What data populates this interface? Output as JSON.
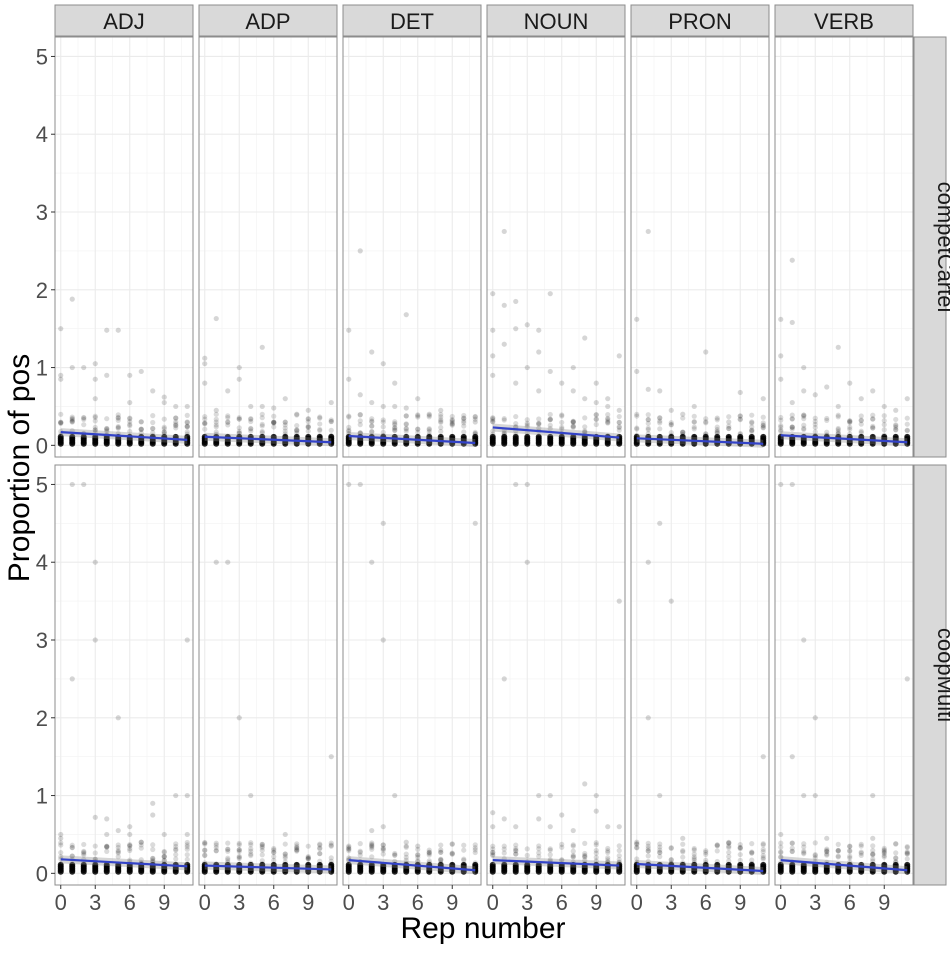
{
  "chart_data": {
    "type": "scatter",
    "title": "",
    "xlabel": "Rep number",
    "ylabel": "Proportion of pos",
    "xlim": [
      -0.5,
      11.5
    ],
    "ylim": [
      -0.15,
      5.25
    ],
    "x_ticks": [
      "0",
      "3",
      "6",
      "9"
    ],
    "y_ticks": [
      "0",
      "1",
      "2",
      "3",
      "4",
      "5"
    ],
    "grid": true,
    "legend": "none",
    "facet_columns": [
      "ADJ",
      "ADP",
      "DET",
      "NOUN",
      "PRON",
      "VERB"
    ],
    "facet_rows": [
      "competCartel",
      "coopMulti"
    ],
    "colors": {
      "points": "#000000",
      "fit_line": "#3343c8",
      "strip_fill": "#d9d9d9",
      "grid": "#ebebeb",
      "panel_border": "#8c8c8c"
    },
    "fit_lines": [
      {
        "row": "competCartel",
        "col": "ADJ",
        "y0": 0.17,
        "y11": 0.07
      },
      {
        "row": "competCartel",
        "col": "ADP",
        "y0": 0.11,
        "y11": 0.04
      },
      {
        "row": "competCartel",
        "col": "DET",
        "y0": 0.12,
        "y11": 0.03
      },
      {
        "row": "competCartel",
        "col": "NOUN",
        "y0": 0.23,
        "y11": 0.1
      },
      {
        "row": "competCartel",
        "col": "PRON",
        "y0": 0.09,
        "y11": 0.02
      },
      {
        "row": "competCartel",
        "col": "VERB",
        "y0": 0.13,
        "y11": 0.04
      },
      {
        "row": "coopMulti",
        "col": "ADJ",
        "y0": 0.18,
        "y11": 0.09
      },
      {
        "row": "coopMulti",
        "col": "ADP",
        "y0": 0.1,
        "y11": 0.05
      },
      {
        "row": "coopMulti",
        "col": "DET",
        "y0": 0.17,
        "y11": 0.04
      },
      {
        "row": "coopMulti",
        "col": "NOUN",
        "y0": 0.17,
        "y11": 0.1
      },
      {
        "row": "coopMulti",
        "col": "PRON",
        "y0": 0.12,
        "y11": 0.03
      },
      {
        "row": "coopMulti",
        "col": "VERB",
        "y0": 0.17,
        "y11": 0.04
      }
    ],
    "outliers": [
      {
        "row": "competCartel",
        "col": "ADJ",
        "points": [
          [
            0,
            1.5
          ],
          [
            0,
            0.9
          ],
          [
            0,
            0.85
          ],
          [
            1,
            1.88
          ],
          [
            1,
            1.0
          ],
          [
            1,
            0.3
          ],
          [
            2,
            1.0
          ],
          [
            3,
            1.05
          ],
          [
            3,
            0.85
          ],
          [
            3,
            0.6
          ],
          [
            4,
            1.48
          ],
          [
            4,
            0.9
          ],
          [
            5,
            1.48
          ],
          [
            5,
            0.35
          ],
          [
            6,
            0.9
          ],
          [
            6,
            0.55
          ],
          [
            7,
            0.95
          ],
          [
            8,
            0.7
          ],
          [
            9,
            0.62
          ],
          [
            9,
            0.55
          ],
          [
            10,
            0.5
          ],
          [
            10,
            0.35
          ],
          [
            11,
            0.5
          ],
          [
            11,
            0.3
          ]
        ]
      },
      {
        "row": "competCartel",
        "col": "ADP",
        "points": [
          [
            0,
            1.12
          ],
          [
            0,
            1.05
          ],
          [
            0,
            0.8
          ],
          [
            1,
            1.63
          ],
          [
            1,
            0.45
          ],
          [
            2,
            0.7
          ],
          [
            3,
            1.0
          ],
          [
            3,
            0.85
          ],
          [
            4,
            0.5
          ],
          [
            5,
            1.26
          ],
          [
            5,
            0.5
          ],
          [
            6,
            0.48
          ],
          [
            7,
            0.6
          ],
          [
            8,
            0.4
          ],
          [
            9,
            0.45
          ],
          [
            10,
            0.35
          ],
          [
            11,
            0.55
          ]
        ]
      },
      {
        "row": "competCartel",
        "col": "DET",
        "points": [
          [
            0,
            1.48
          ],
          [
            0,
            0.85
          ],
          [
            1,
            2.5
          ],
          [
            1,
            0.65
          ],
          [
            2,
            1.2
          ],
          [
            2,
            0.55
          ],
          [
            3,
            1.05
          ],
          [
            3,
            0.5
          ],
          [
            4,
            0.8
          ],
          [
            4,
            0.5
          ],
          [
            5,
            1.68
          ],
          [
            5,
            0.48
          ],
          [
            6,
            0.6
          ],
          [
            7,
            0.4
          ],
          [
            8,
            0.45
          ],
          [
            9,
            0.3
          ],
          [
            10,
            0.35
          ],
          [
            11,
            0.3
          ]
        ]
      },
      {
        "row": "competCartel",
        "col": "NOUN",
        "points": [
          [
            0,
            1.95
          ],
          [
            0,
            1.48
          ],
          [
            0,
            1.15
          ],
          [
            0,
            0.9
          ],
          [
            1,
            2.75
          ],
          [
            1,
            1.8
          ],
          [
            1,
            1.3
          ],
          [
            2,
            1.85
          ],
          [
            2,
            1.5
          ],
          [
            2,
            0.8
          ],
          [
            3,
            1.55
          ],
          [
            3,
            1.0
          ],
          [
            4,
            1.48
          ],
          [
            4,
            1.2
          ],
          [
            4,
            0.7
          ],
          [
            5,
            1.95
          ],
          [
            5,
            0.95
          ],
          [
            6,
            0.8
          ],
          [
            7,
            1.0
          ],
          [
            7,
            0.7
          ],
          [
            8,
            1.38
          ],
          [
            8,
            0.6
          ],
          [
            9,
            0.8
          ],
          [
            9,
            0.55
          ],
          [
            10,
            0.6
          ],
          [
            10,
            0.5
          ],
          [
            11,
            1.15
          ],
          [
            11,
            0.45
          ]
        ]
      },
      {
        "row": "competCartel",
        "col": "PRON",
        "points": [
          [
            0,
            1.62
          ],
          [
            0,
            0.95
          ],
          [
            1,
            2.75
          ],
          [
            1,
            0.72
          ],
          [
            2,
            0.7
          ],
          [
            3,
            0.45
          ],
          [
            4,
            0.4
          ],
          [
            5,
            0.5
          ],
          [
            6,
            1.2
          ],
          [
            7,
            0.35
          ],
          [
            8,
            0.3
          ],
          [
            9,
            0.68
          ],
          [
            10,
            0.3
          ],
          [
            11,
            0.6
          ]
        ]
      },
      {
        "row": "competCartel",
        "col": "VERB",
        "points": [
          [
            0,
            1.62
          ],
          [
            0,
            1.15
          ],
          [
            0,
            0.85
          ],
          [
            1,
            2.38
          ],
          [
            1,
            1.58
          ],
          [
            1,
            0.55
          ],
          [
            2,
            1.0
          ],
          [
            2,
            0.7
          ],
          [
            3,
            0.65
          ],
          [
            4,
            0.75
          ],
          [
            5,
            1.26
          ],
          [
            5,
            0.5
          ],
          [
            6,
            0.8
          ],
          [
            7,
            0.6
          ],
          [
            8,
            0.7
          ],
          [
            9,
            0.5
          ],
          [
            10,
            0.45
          ],
          [
            11,
            0.6
          ]
        ]
      },
      {
        "row": "coopMulti",
        "col": "ADJ",
        "points": [
          [
            0,
            0.5
          ],
          [
            0,
            0.45
          ],
          [
            1,
            5.0
          ],
          [
            1,
            2.5
          ],
          [
            2,
            5.0
          ],
          [
            3,
            4.0
          ],
          [
            3,
            3.0
          ],
          [
            3,
            0.72
          ],
          [
            4,
            0.7
          ],
          [
            4,
            0.5
          ],
          [
            5,
            2.0
          ],
          [
            5,
            0.55
          ],
          [
            6,
            0.6
          ],
          [
            6,
            0.5
          ],
          [
            7,
            0.4
          ],
          [
            8,
            0.75
          ],
          [
            8,
            0.9
          ],
          [
            9,
            0.5
          ],
          [
            10,
            1.0
          ],
          [
            11,
            3.0
          ],
          [
            11,
            1.0
          ],
          [
            11,
            0.5
          ]
        ]
      },
      {
        "row": "coopMulti",
        "col": "ADP",
        "points": [
          [
            0,
            0.3
          ],
          [
            1,
            4.0
          ],
          [
            2,
            4.0
          ],
          [
            3,
            2.0
          ],
          [
            3,
            0.3
          ],
          [
            4,
            1.0
          ],
          [
            5,
            0.35
          ],
          [
            6,
            0.3
          ],
          [
            7,
            0.5
          ],
          [
            8,
            0.3
          ],
          [
            11,
            1.5
          ],
          [
            11,
            0.35
          ]
        ]
      },
      {
        "row": "coopMulti",
        "col": "DET",
        "points": [
          [
            0,
            5.0
          ],
          [
            0,
            0.35
          ],
          [
            1,
            5.0
          ],
          [
            2,
            4.0
          ],
          [
            2,
            0.55
          ],
          [
            3,
            4.5
          ],
          [
            3,
            3.0
          ],
          [
            3,
            0.6
          ],
          [
            4,
            1.0
          ],
          [
            5,
            0.4
          ],
          [
            6,
            0.35
          ],
          [
            8,
            0.3
          ],
          [
            11,
            4.5
          ]
        ]
      },
      {
        "row": "coopMulti",
        "col": "NOUN",
        "points": [
          [
            0,
            0.78
          ],
          [
            0,
            0.6
          ],
          [
            1,
            2.5
          ],
          [
            1,
            0.7
          ],
          [
            2,
            5.0
          ],
          [
            2,
            0.6
          ],
          [
            3,
            5.0
          ],
          [
            3,
            4.0
          ],
          [
            4,
            1.0
          ],
          [
            4,
            0.7
          ],
          [
            5,
            1.0
          ],
          [
            5,
            0.6
          ],
          [
            6,
            0.75
          ],
          [
            7,
            0.55
          ],
          [
            8,
            1.15
          ],
          [
            9,
            1.0
          ],
          [
            9,
            0.8
          ],
          [
            10,
            0.6
          ],
          [
            11,
            3.5
          ],
          [
            11,
            0.6
          ]
        ]
      },
      {
        "row": "coopMulti",
        "col": "PRON",
        "points": [
          [
            0,
            0.4
          ],
          [
            1,
            4.0
          ],
          [
            1,
            2.0
          ],
          [
            2,
            4.5
          ],
          [
            2,
            1.0
          ],
          [
            3,
            3.5
          ],
          [
            4,
            0.45
          ],
          [
            5,
            0.3
          ],
          [
            8,
            0.35
          ],
          [
            11,
            1.5
          ]
        ]
      },
      {
        "row": "coopMulti",
        "col": "VERB",
        "points": [
          [
            0,
            5.0
          ],
          [
            0,
            0.5
          ],
          [
            1,
            5.0
          ],
          [
            1,
            1.5
          ],
          [
            2,
            3.0
          ],
          [
            2,
            1.0
          ],
          [
            3,
            2.0
          ],
          [
            3,
            1.0
          ],
          [
            4,
            0.45
          ],
          [
            6,
            0.35
          ],
          [
            8,
            1.0
          ],
          [
            8,
            0.45
          ],
          [
            9,
            0.3
          ],
          [
            11,
            2.5
          ]
        ]
      }
    ]
  }
}
